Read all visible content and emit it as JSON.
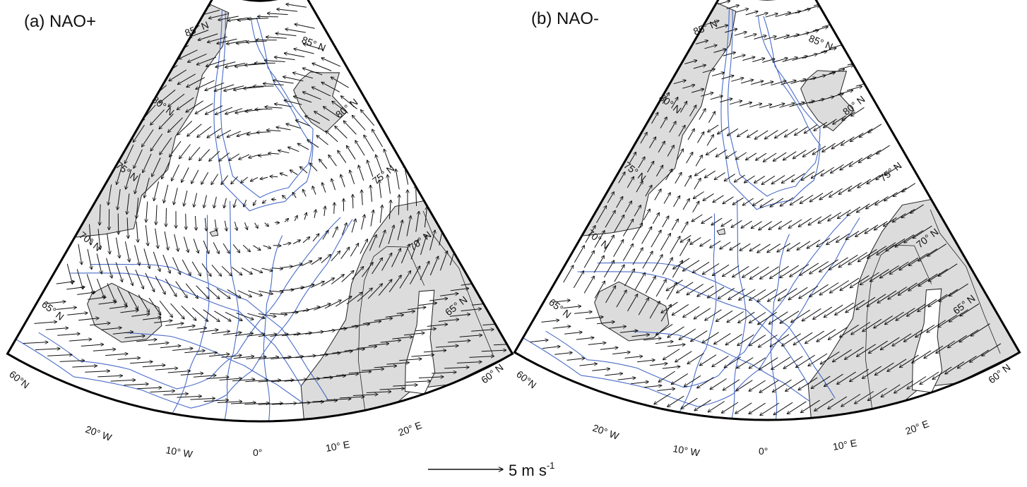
{
  "colors": {
    "land": "#dcdcdc",
    "coast": "#222222",
    "bathymetry": "#4a6cc8",
    "arrow": "#111111",
    "frame": "#000000"
  },
  "panels": [
    {
      "title": "(a) NAO+",
      "lat_labels": [
        "85° N",
        "85° N",
        "80° N",
        "80° N",
        "75° N",
        "75° N",
        "70° N",
        "70° N",
        "65° N",
        "65° N",
        "60°N",
        "60° N"
      ],
      "lon_labels": [
        "20° W",
        "10° W",
        "0°",
        "10° E",
        "20° E"
      ],
      "wind_pattern": "cyclonic circulation centered over the Norwegian Sea, strong westerlies south of Iceland"
    },
    {
      "title": "(b) NAO-",
      "lat_labels": [
        "85° N",
        "85° N",
        "80° N",
        "80° N",
        "75° N",
        "75° N",
        "70° N",
        "70° N",
        "65° N",
        "65° N",
        "60°N",
        "60° N"
      ],
      "lon_labels": [
        "20° W",
        "10° W",
        "0°",
        "10° E",
        "20° E"
      ],
      "wind_pattern": "northeasterly flow over Scandinavia and the Norwegian Sea, weak southerlies near Greenland"
    }
  ],
  "scale": {
    "value": "5",
    "unit": "m s",
    "exponent": "-1"
  }
}
